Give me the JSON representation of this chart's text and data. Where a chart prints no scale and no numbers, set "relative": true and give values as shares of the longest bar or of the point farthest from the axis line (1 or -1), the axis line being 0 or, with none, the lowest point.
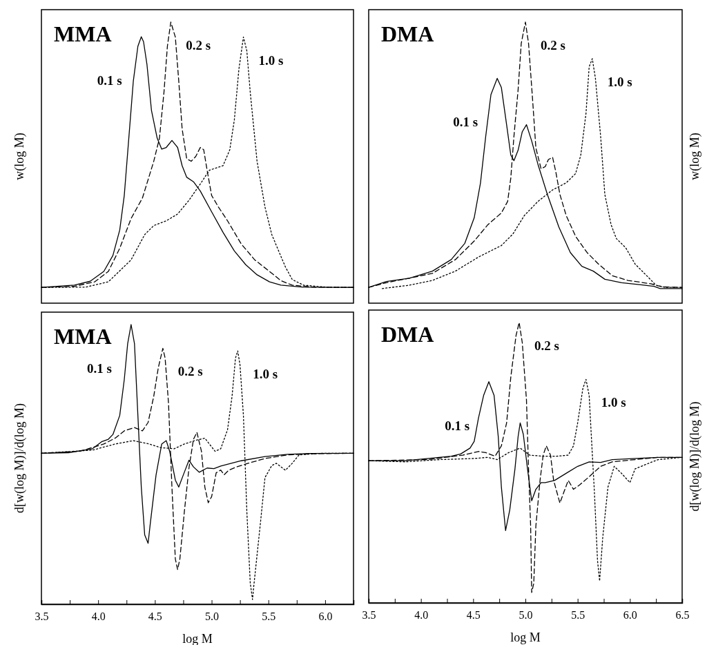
{
  "chart_data": [
    {
      "type": "line",
      "title": "MMA",
      "ylabel": "w(log M)",
      "relative": true,
      "xlim": [
        3.5,
        6.25
      ],
      "tick_labels": false,
      "series": [
        {
          "name": "0.1 s",
          "color": "#000000",
          "line_style": "solid",
          "x": [
            3.5,
            3.79,
            3.93,
            4.05,
            4.13,
            4.19,
            4.23,
            4.27,
            4.31,
            4.35,
            4.38,
            4.4,
            4.43,
            4.47,
            4.52,
            4.56,
            4.6,
            4.65,
            4.7,
            4.74,
            4.78,
            4.84,
            4.9,
            5.0,
            5.1,
            5.2,
            5.3,
            5.4,
            5.51,
            5.61,
            5.81,
            6.25
          ],
          "values": [
            0.056,
            0.064,
            0.078,
            0.113,
            0.17,
            0.26,
            0.383,
            0.587,
            0.791,
            0.914,
            0.948,
            0.93,
            0.849,
            0.685,
            0.587,
            0.548,
            0.554,
            0.579,
            0.554,
            0.489,
            0.448,
            0.432,
            0.399,
            0.325,
            0.252,
            0.186,
            0.137,
            0.101,
            0.076,
            0.064,
            0.057,
            0.056
          ]
        },
        {
          "name": "0.2 s",
          "color": "#000000",
          "line_style": "dashed",
          "x": [
            3.5,
            3.79,
            3.97,
            4.09,
            4.19,
            4.29,
            4.39,
            4.49,
            4.54,
            4.58,
            4.61,
            4.64,
            4.68,
            4.71,
            4.74,
            4.78,
            4.82,
            4.86,
            4.9,
            4.93,
            4.96,
            5.0,
            5.06,
            5.14,
            5.26,
            5.38,
            5.51,
            5.61,
            5.71,
            5.91,
            6.25
          ],
          "values": [
            0.056,
            0.06,
            0.076,
            0.113,
            0.195,
            0.301,
            0.374,
            0.505,
            0.587,
            0.751,
            0.914,
            1,
            0.947,
            0.791,
            0.62,
            0.514,
            0.505,
            0.522,
            0.554,
            0.546,
            0.473,
            0.383,
            0.342,
            0.293,
            0.211,
            0.154,
            0.113,
            0.08,
            0.064,
            0.057,
            0.056
          ]
        },
        {
          "name": "1.0 s",
          "color": "#000000",
          "line_style": "dotted",
          "x": [
            3.5,
            3.89,
            4.09,
            4.29,
            4.41,
            4.49,
            4.6,
            4.7,
            4.8,
            4.9,
            4.98,
            5.1,
            5.16,
            5.2,
            5.24,
            5.28,
            5.31,
            5.34,
            5.4,
            5.47,
            5.53,
            5.59,
            5.65,
            5.71,
            5.81,
            6.01,
            6.25
          ],
          "values": [
            0.056,
            0.057,
            0.076,
            0.154,
            0.244,
            0.276,
            0.293,
            0.317,
            0.366,
            0.424,
            0.473,
            0.489,
            0.546,
            0.652,
            0.832,
            0.947,
            0.898,
            0.751,
            0.505,
            0.342,
            0.244,
            0.186,
            0.129,
            0.084,
            0.064,
            0.057,
            0.056
          ]
        }
      ]
    },
    {
      "type": "line",
      "title": "DMA",
      "ylabel": "w(log M)",
      "relative": true,
      "xlim": [
        3.5,
        6.5
      ],
      "tick_labels": false,
      "series": [
        {
          "name": "0.1 s",
          "color": "#000000",
          "line_style": "solid",
          "x": [
            3.5,
            3.67,
            3.89,
            4.11,
            4.29,
            4.42,
            4.51,
            4.57,
            4.62,
            4.67,
            4.73,
            4.77,
            4.82,
            4.86,
            4.89,
            4.93,
            4.97,
            5.01,
            5.06,
            5.12,
            5.21,
            5.32,
            5.43,
            5.54,
            5.65,
            5.76,
            5.92,
            6.09,
            6.23,
            6.29,
            6.5
          ],
          "values": [
            0.056,
            0.077,
            0.089,
            0.114,
            0.155,
            0.213,
            0.304,
            0.428,
            0.593,
            0.742,
            0.8,
            0.767,
            0.635,
            0.527,
            0.507,
            0.544,
            0.61,
            0.635,
            0.577,
            0.494,
            0.387,
            0.271,
            0.18,
            0.131,
            0.114,
            0.085,
            0.073,
            0.066,
            0.06,
            0.052,
            0.052
          ]
        },
        {
          "name": "0.2 s",
          "color": "#000000",
          "line_style": "dashed",
          "x": [
            3.5,
            3.67,
            3.89,
            4.11,
            4.33,
            4.51,
            4.64,
            4.77,
            4.83,
            4.86,
            4.89,
            4.93,
            4.96,
            5.0,
            5.03,
            5.07,
            5.1,
            5.15,
            5.19,
            5.22,
            5.26,
            5.29,
            5.33,
            5.39,
            5.48,
            5.59,
            5.7,
            5.83,
            5.98,
            6.2,
            6.31,
            6.5
          ],
          "values": [
            0.056,
            0.073,
            0.089,
            0.106,
            0.155,
            0.221,
            0.279,
            0.321,
            0.362,
            0.445,
            0.593,
            0.759,
            0.924,
            1,
            0.924,
            0.717,
            0.552,
            0.478,
            0.486,
            0.511,
            0.519,
            0.469,
            0.387,
            0.312,
            0.238,
            0.18,
            0.139,
            0.098,
            0.081,
            0.069,
            0.058,
            0.056
          ]
        },
        {
          "name": "1.0 s",
          "color": "#000000",
          "line_style": "dotted",
          "x": [
            3.63,
            3.89,
            4.11,
            4.33,
            4.55,
            4.77,
            4.88,
            4.99,
            5.12,
            5.26,
            5.39,
            5.48,
            5.53,
            5.58,
            5.61,
            5.64,
            5.67,
            5.72,
            5.76,
            5.82,
            5.87,
            5.96,
            6.05,
            6.16,
            6.25,
            6.34,
            6.5
          ],
          "values": [
            0.052,
            0.064,
            0.081,
            0.114,
            0.164,
            0.205,
            0.246,
            0.312,
            0.362,
            0.403,
            0.428,
            0.461,
            0.527,
            0.676,
            0.841,
            0.87,
            0.8,
            0.593,
            0.387,
            0.279,
            0.23,
            0.197,
            0.139,
            0.098,
            0.064,
            0.056,
            0.056
          ]
        }
      ]
    },
    {
      "type": "line",
      "title": "MMA",
      "ylabel": "d[w(log M)]/d(log M)",
      "xlabel": "log M",
      "relative": true,
      "xlim": [
        3.5,
        6.25
      ],
      "tick_labels": "x",
      "xticks": [
        3.5,
        {
          "value": 3.75,
          "label": null
        },
        {
          "value": 4,
          "label": "4.0"
        },
        {
          "value": 4.25,
          "label": null
        },
        4.5,
        {
          "value": 4.75,
          "label": null
        },
        {
          "value": 5,
          "label": "5.0"
        },
        {
          "value": 5.25,
          "label": null
        },
        5.5,
        {
          "value": 5.75,
          "label": null
        },
        {
          "value": 6,
          "label": "6.0"
        },
        {
          "value": 6.25,
          "label": null
        }
      ],
      "series": [
        {
          "name": "0.1 s",
          "color": "#000000",
          "line_style": "solid",
          "x": [
            3.5,
            3.74,
            3.95,
            4.03,
            4.09,
            4.13,
            4.19,
            4.23,
            4.26,
            4.29,
            4.32,
            4.35,
            4.38,
            4.41,
            4.44,
            4.46,
            4.51,
            4.56,
            4.6,
            4.63,
            4.68,
            4.71,
            4.75,
            4.8,
            4.84,
            4.89,
            4.96,
            5.02,
            5.08,
            5.26,
            5.47,
            5.67,
            5.87,
            6.25
          ],
          "values": [
            0.54,
            0.542,
            0.556,
            0.581,
            0.59,
            0.607,
            0.675,
            0.803,
            0.932,
            1,
            0.932,
            0.675,
            0.419,
            0.248,
            0.218,
            0.291,
            0.462,
            0.573,
            0.585,
            0.547,
            0.444,
            0.419,
            0.462,
            0.515,
            0.491,
            0.472,
            0.487,
            0.485,
            0.494,
            0.513,
            0.528,
            0.536,
            0.539,
            0.54
          ]
        },
        {
          "name": "0.2 s",
          "color": "#000000",
          "line_style": "dashed",
          "x": [
            3.5,
            3.84,
            4.05,
            4.15,
            4.23,
            4.32,
            4.39,
            4.44,
            4.49,
            4.53,
            4.57,
            4.59,
            4.62,
            4.65,
            4.68,
            4.7,
            4.72,
            4.76,
            4.8,
            4.84,
            4.87,
            4.91,
            4.94,
            4.97,
            5.0,
            5.04,
            5.08,
            5.11,
            5.15,
            5.22,
            5.32,
            5.47,
            5.67,
            5.87,
            6.25
          ],
          "values": [
            0.54,
            0.547,
            0.573,
            0.594,
            0.62,
            0.632,
            0.62,
            0.65,
            0.744,
            0.846,
            0.915,
            0.88,
            0.718,
            0.419,
            0.162,
            0.124,
            0.162,
            0.333,
            0.487,
            0.59,
            0.615,
            0.547,
            0.419,
            0.363,
            0.385,
            0.47,
            0.48,
            0.463,
            0.479,
            0.491,
            0.504,
            0.521,
            0.534,
            0.538,
            0.54
          ]
        },
        {
          "name": "1.0 s",
          "color": "#000000",
          "line_style": "dotted",
          "x": [
            3.5,
            3.95,
            4.15,
            4.31,
            4.45,
            4.55,
            4.67,
            4.76,
            4.85,
            4.94,
            5.03,
            5.08,
            5.14,
            5.18,
            5.21,
            5.23,
            5.25,
            5.28,
            5.31,
            5.34,
            5.36,
            5.37,
            5.43,
            5.47,
            5.53,
            5.57,
            5.65,
            5.71,
            5.77,
            5.97,
            6.25
          ],
          "values": [
            0.54,
            0.551,
            0.573,
            0.585,
            0.573,
            0.56,
            0.556,
            0.573,
            0.585,
            0.594,
            0.547,
            0.556,
            0.624,
            0.744,
            0.88,
            0.906,
            0.855,
            0.675,
            0.333,
            0.077,
            0.017,
            0.06,
            0.291,
            0.453,
            0.496,
            0.504,
            0.479,
            0.504,
            0.534,
            0.54,
            0.54
          ]
        }
      ]
    },
    {
      "type": "line",
      "title": "DMA",
      "ylabel": "d[w(log M)]/d(log M)",
      "xlabel": "log M",
      "relative": true,
      "xlim": [
        3.5,
        6.5
      ],
      "tick_labels": "x",
      "xticks": [
        3.5,
        {
          "value": 3.75,
          "label": null
        },
        {
          "value": 4,
          "label": "4.0"
        },
        {
          "value": 4.25,
          "label": null
        },
        4.5,
        {
          "value": 4.75,
          "label": null
        },
        {
          "value": 5,
          "label": "5.0"
        },
        {
          "value": 5.25,
          "label": null
        },
        5.5,
        {
          "value": 5.75,
          "label": null
        },
        {
          "value": 6,
          "label": "6.0"
        },
        {
          "value": 6.25,
          "label": null
        },
        6.5
      ],
      "series": [
        {
          "name": "0.1 s",
          "color": "#000000",
          "line_style": "solid",
          "x": [
            3.5,
            3.85,
            4.07,
            4.29,
            4.38,
            4.47,
            4.51,
            4.55,
            4.6,
            4.65,
            4.7,
            4.74,
            4.77,
            4.81,
            4.85,
            4.9,
            4.93,
            4.95,
            4.98,
            5.02,
            5.06,
            5.1,
            5.15,
            5.19,
            5.28,
            5.39,
            5.5,
            5.61,
            5.72,
            5.83,
            6.05,
            6.27,
            6.5
          ],
          "values": [
            0.507,
            0.507,
            0.515,
            0.523,
            0.531,
            0.552,
            0.576,
            0.658,
            0.74,
            0.789,
            0.74,
            0.593,
            0.413,
            0.258,
            0.331,
            0.478,
            0.593,
            0.642,
            0.601,
            0.478,
            0.364,
            0.405,
            0.429,
            0.429,
            0.437,
            0.462,
            0.487,
            0.503,
            0.501,
            0.511,
            0.515,
            0.519,
            0.519
          ]
        },
        {
          "name": "0.2 s",
          "color": "#000000",
          "line_style": "dashed",
          "x": [
            3.5,
            4.07,
            4.4,
            4.55,
            4.62,
            4.71,
            4.77,
            4.82,
            4.86,
            4.91,
            4.94,
            4.97,
            5.01,
            5.03,
            5.05,
            5.06,
            5.08,
            5.1,
            5.14,
            5.17,
            5.2,
            5.24,
            5.27,
            5.33,
            5.37,
            5.41,
            5.46,
            5.52,
            5.61,
            5.72,
            5.83,
            6.05,
            6.27,
            6.5
          ],
          "values": [
            0.507,
            0.511,
            0.527,
            0.54,
            0.536,
            0.523,
            0.56,
            0.642,
            0.805,
            0.953,
            1,
            0.928,
            0.724,
            0.478,
            0.274,
            0.037,
            0.07,
            0.274,
            0.437,
            0.527,
            0.56,
            0.527,
            0.437,
            0.356,
            0.397,
            0.437,
            0.405,
            0.421,
            0.45,
            0.487,
            0.503,
            0.511,
            0.519,
            0.519
          ]
        },
        {
          "name": "1.0 s",
          "color": "#000000",
          "line_style": "dotted",
          "x": [
            3.5,
            3.85,
            4.18,
            4.51,
            4.64,
            4.73,
            4.84,
            4.95,
            5.04,
            5.17,
            5.3,
            5.41,
            5.46,
            5.5,
            5.55,
            5.58,
            5.61,
            5.63,
            5.66,
            5.69,
            5.71,
            5.74,
            5.79,
            5.85,
            5.92,
            6.0,
            6.05,
            6.16,
            6.27,
            6.5
          ],
          "values": [
            0.507,
            0.503,
            0.511,
            0.515,
            0.519,
            0.511,
            0.536,
            0.552,
            0.527,
            0.523,
            0.523,
            0.527,
            0.56,
            0.642,
            0.765,
            0.797,
            0.74,
            0.601,
            0.397,
            0.151,
            0.078,
            0.233,
            0.413,
            0.487,
            0.462,
            0.429,
            0.478,
            0.495,
            0.511,
            0.519
          ]
        }
      ]
    }
  ]
}
